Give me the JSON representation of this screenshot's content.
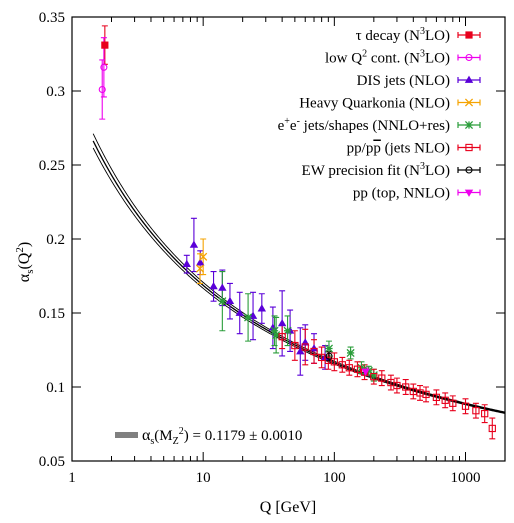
{
  "chart_data": {
    "type": "scatter",
    "xscale": "log",
    "xlim": [
      1,
      2000
    ],
    "ylim": [
      0.05,
      0.35
    ],
    "grid": false,
    "legend_position": "top-right",
    "xlabel": "Q [GeV]",
    "ylabel_main": "α",
    "ylabel_sub": "s",
    "ylabel_paren": "(Q",
    "ylabel_sup": "2",
    "ylabel_close": ")",
    "x_ticks": [
      {
        "value": 1,
        "label": "1"
      },
      {
        "value": 10,
        "label": "10"
      },
      {
        "value": 100,
        "label": "100"
      },
      {
        "value": 1000,
        "label": "1000"
      }
    ],
    "y_ticks": [
      {
        "value": 0.05,
        "label": "0.05"
      },
      {
        "value": 0.1,
        "label": "0.1"
      },
      {
        "value": 0.15,
        "label": "0.15"
      },
      {
        "value": 0.2,
        "label": "0.2"
      },
      {
        "value": 0.25,
        "label": "0.25"
      },
      {
        "value": 0.3,
        "label": "0.3"
      },
      {
        "value": 0.35,
        "label": "0.35"
      }
    ],
    "band": {
      "label_alpha": "α",
      "label_sub": "s",
      "label_paren": "(M",
      "label_Z": "Z",
      "label_sup": "2",
      "label_tail": ") = 0.1179 ± 0.0010",
      "central": 0.1179,
      "uncertainty": 0.001,
      "mz": 91.19
    },
    "series": [
      {
        "name": "τ decay (N³LO)",
        "legend": {
          "pre": "τ decay (N",
          "sup": "3",
          "post": "LO)"
        },
        "color": "#e8001c",
        "marker": "square-filled",
        "points": [
          {
            "x": 1.78,
            "y": 0.331,
            "err": 0.013
          }
        ]
      },
      {
        "name": "low Q² cont. (N³LO)",
        "legend": {
          "pre": "low Q",
          "sup": "2",
          "mid": " cont. (N",
          "sup2": "3",
          "post": "LO)"
        },
        "color": "#ee00ee",
        "marker": "circle-open",
        "points": [
          {
            "x": 1.7,
            "y": 0.301,
            "err": 0.02
          },
          {
            "x": 1.75,
            "y": 0.316,
            "err": 0.02
          }
        ]
      },
      {
        "name": "DIS jets (NLO)",
        "legend": {
          "pre": "DIS jets (NLO)"
        },
        "color": "#5a00d8",
        "marker": "triangle-filled",
        "points": [
          {
            "x": 7.5,
            "y": 0.183,
            "err": 0.006
          },
          {
            "x": 8.5,
            "y": 0.196,
            "err": 0.018
          },
          {
            "x": 9.5,
            "y": 0.184,
            "err": 0.008
          },
          {
            "x": 12,
            "y": 0.168,
            "err": 0.01
          },
          {
            "x": 14,
            "y": 0.167,
            "err": 0.012
          },
          {
            "x": 16,
            "y": 0.158,
            "err": 0.012
          },
          {
            "x": 19,
            "y": 0.15,
            "err": 0.014
          },
          {
            "x": 24,
            "y": 0.148,
            "err": 0.016
          },
          {
            "x": 28,
            "y": 0.153,
            "err": 0.01
          },
          {
            "x": 34,
            "y": 0.14,
            "err": 0.014
          },
          {
            "x": 40,
            "y": 0.143,
            "err": 0.022
          },
          {
            "x": 46,
            "y": 0.138,
            "err": 0.014
          },
          {
            "x": 55,
            "y": 0.124,
            "err": 0.016
          },
          {
            "x": 60,
            "y": 0.13,
            "err": 0.012
          },
          {
            "x": 70,
            "y": 0.126,
            "err": 0.01
          },
          {
            "x": 85,
            "y": 0.12,
            "err": 0.008
          }
        ]
      },
      {
        "name": "Heavy Quarkonia (NLO)",
        "legend": {
          "pre": "Heavy Quarkonia (NLO)"
        },
        "color": "#f5a300",
        "marker": "cross",
        "points": [
          {
            "x": 9.46,
            "y": 0.18,
            "err": 0.01
          },
          {
            "x": 10,
            "y": 0.188,
            "err": 0.012
          }
        ]
      },
      {
        "name": "e⁺e⁻ jets/shapes (NNLO+res)",
        "legend": {
          "pre": "e",
          "sup": "+",
          "mid": "e",
          "sup2": "-",
          "post": " jets/shapes (NNLO+res)"
        },
        "color": "#2a9d3a",
        "marker": "star",
        "points": [
          {
            "x": 14,
            "y": 0.158,
            "err": 0.02
          },
          {
            "x": 22,
            "y": 0.147,
            "err": 0.016
          },
          {
            "x": 35,
            "y": 0.138,
            "err": 0.01
          },
          {
            "x": 36,
            "y": 0.135,
            "err": 0.012
          },
          {
            "x": 44,
            "y": 0.138,
            "err": 0.01
          },
          {
            "x": 91,
            "y": 0.126,
            "err": 0.005
          },
          {
            "x": 133,
            "y": 0.123,
            "err": 0.004
          },
          {
            "x": 161,
            "y": 0.113,
            "err": 0.004
          },
          {
            "x": 183,
            "y": 0.111,
            "err": 0.003
          },
          {
            "x": 200,
            "y": 0.108,
            "err": 0.004
          }
        ]
      },
      {
        "name": "pp/pp̄ (jets NLO)",
        "legend": {
          "pre": "pp/p",
          "bar": "p",
          "post": " (jets NLO)"
        },
        "color": "#e8001c",
        "marker": "square-open",
        "points": [
          {
            "x": 40,
            "y": 0.134,
            "err": 0.008
          },
          {
            "x": 50,
            "y": 0.128,
            "err": 0.01
          },
          {
            "x": 60,
            "y": 0.127,
            "err": 0.012
          },
          {
            "x": 70,
            "y": 0.124,
            "err": 0.008
          },
          {
            "x": 80,
            "y": 0.12,
            "err": 0.007
          },
          {
            "x": 90,
            "y": 0.118,
            "err": 0.006
          },
          {
            "x": 100,
            "y": 0.117,
            "err": 0.006
          },
          {
            "x": 115,
            "y": 0.115,
            "err": 0.005
          },
          {
            "x": 130,
            "y": 0.113,
            "err": 0.005
          },
          {
            "x": 150,
            "y": 0.112,
            "err": 0.005
          },
          {
            "x": 170,
            "y": 0.11,
            "err": 0.005
          },
          {
            "x": 200,
            "y": 0.107,
            "err": 0.005
          },
          {
            "x": 230,
            "y": 0.106,
            "err": 0.005
          },
          {
            "x": 270,
            "y": 0.103,
            "err": 0.005
          },
          {
            "x": 300,
            "y": 0.101,
            "err": 0.005
          },
          {
            "x": 350,
            "y": 0.1,
            "err": 0.005
          },
          {
            "x": 400,
            "y": 0.097,
            "err": 0.005
          },
          {
            "x": 450,
            "y": 0.096,
            "err": 0.005
          },
          {
            "x": 500,
            "y": 0.095,
            "err": 0.005
          },
          {
            "x": 600,
            "y": 0.093,
            "err": 0.005
          },
          {
            "x": 700,
            "y": 0.091,
            "err": 0.005
          },
          {
            "x": 800,
            "y": 0.089,
            "err": 0.005
          },
          {
            "x": 1000,
            "y": 0.087,
            "err": 0.005
          },
          {
            "x": 1200,
            "y": 0.084,
            "err": 0.005
          },
          {
            "x": 1400,
            "y": 0.082,
            "err": 0.006
          },
          {
            "x": 1600,
            "y": 0.072,
            "err": 0.007
          }
        ]
      },
      {
        "name": "EW precision fit (N³LO)",
        "legend": {
          "pre": "EW precision fit (N",
          "sup": "3",
          "post": "LO)"
        },
        "color": "#000000",
        "marker": "circle-open",
        "points": [
          {
            "x": 91.19,
            "y": 0.1208,
            "err": 0.003
          }
        ]
      },
      {
        "name": "pp (top, NNLO)",
        "legend": {
          "pre": "pp (top, NNLO)"
        },
        "color": "#ee00ee",
        "marker": "triangle-down",
        "points": [
          {
            "x": 173,
            "y": 0.1105,
            "err": 0.0025
          }
        ]
      }
    ]
  }
}
